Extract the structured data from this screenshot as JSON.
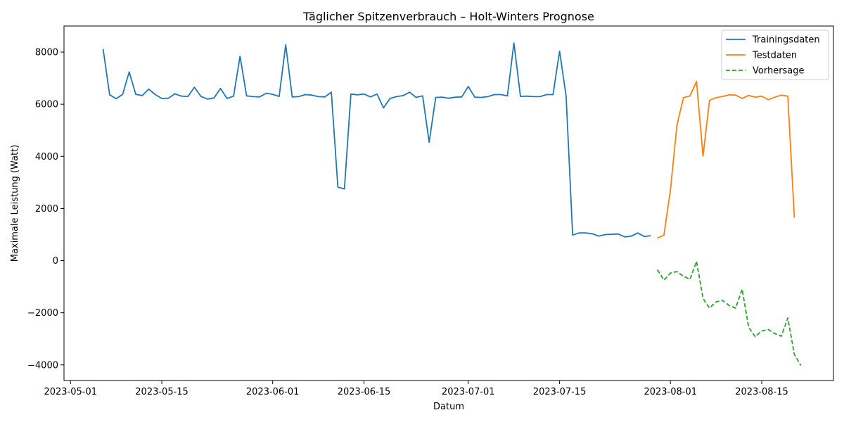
{
  "chart_data": {
    "type": "line",
    "title": "Täglicher Spitzenverbrauch – Holt-Winters Prognose",
    "xlabel": "Datum",
    "ylabel": "Maximale Leistung (Watt)",
    "xlim": [
      "2023-04-30",
      "2023-08-26"
    ],
    "ylim": [
      -4600,
      9000
    ],
    "x_ticks": [
      "2023-05-01",
      "2023-05-15",
      "2023-06-01",
      "2023-06-15",
      "2023-07-01",
      "2023-07-15",
      "2023-08-01",
      "2023-08-15"
    ],
    "y_ticks": [
      -4000,
      -2000,
      0,
      2000,
      4000,
      6000,
      8000
    ],
    "grid": false,
    "legend_position": "top-right",
    "series": [
      {
        "name": "Trainingsdaten",
        "color": "#1f77b4",
        "style": "solid",
        "start": "2023-05-06",
        "values": [
          8120,
          6360,
          6210,
          6380,
          7240,
          6380,
          6330,
          6580,
          6370,
          6220,
          6230,
          6400,
          6310,
          6300,
          6650,
          6300,
          6200,
          6240,
          6600,
          6220,
          6310,
          7840,
          6320,
          6290,
          6280,
          6420,
          6380,
          6300,
          8280,
          6280,
          6290,
          6370,
          6350,
          6290,
          6280,
          6460,
          2820,
          2750,
          6390,
          6360,
          6390,
          6280,
          6390,
          5860,
          6220,
          6290,
          6330,
          6460,
          6260,
          6320,
          4540,
          6260,
          6270,
          6230,
          6270,
          6280,
          6680,
          6270,
          6260,
          6290,
          6370,
          6370,
          6320,
          8350,
          6300,
          6310,
          6290,
          6290,
          6370,
          6370,
          8040,
          6310,
          980,
          1060,
          1060,
          1030,
          940,
          1000,
          1010,
          1020,
          910,
          940,
          1060,
          920,
          960
        ]
      },
      {
        "name": "Testdaten",
        "color": "#ff7f0e",
        "style": "solid",
        "start": "2023-07-30",
        "values": [
          870,
          970,
          2700,
          5200,
          6250,
          6320,
          6870,
          4010,
          6150,
          6250,
          6300,
          6360,
          6350,
          6220,
          6340,
          6270,
          6310,
          6170,
          6270,
          6350,
          6310,
          1650
        ]
      },
      {
        "name": "Vorhersage",
        "color": "#2ca02c",
        "style": "dashed",
        "start": "2023-07-30",
        "values": [
          -350,
          -750,
          -480,
          -420,
          -600,
          -720,
          -30,
          -1450,
          -1820,
          -1580,
          -1530,
          -1720,
          -1820,
          -1100,
          -2560,
          -2920,
          -2700,
          -2640,
          -2800,
          -2900,
          -2200,
          -3600,
          -4020
        ]
      }
    ]
  }
}
